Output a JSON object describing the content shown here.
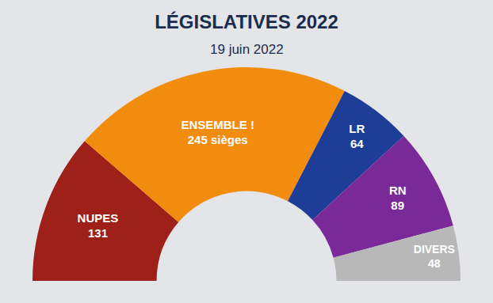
{
  "chart_data": {
    "type": "pie",
    "title": "LÉGISLATIVES 2022",
    "subtitle": "19 juin 2022",
    "categories": [
      "NUPES",
      "ENSEMBLE !",
      "LR",
      "RN",
      "DIVERS"
    ],
    "values": [
      131,
      245,
      64,
      89,
      48
    ],
    "value_labels": [
      "131",
      "245 sièges",
      "64",
      "89",
      "48"
    ],
    "colors": [
      "#9e2019",
      "#f28c0f",
      "#1e3d96",
      "#7a2a98",
      "#b8b8b8"
    ],
    "data_labels": true
  }
}
